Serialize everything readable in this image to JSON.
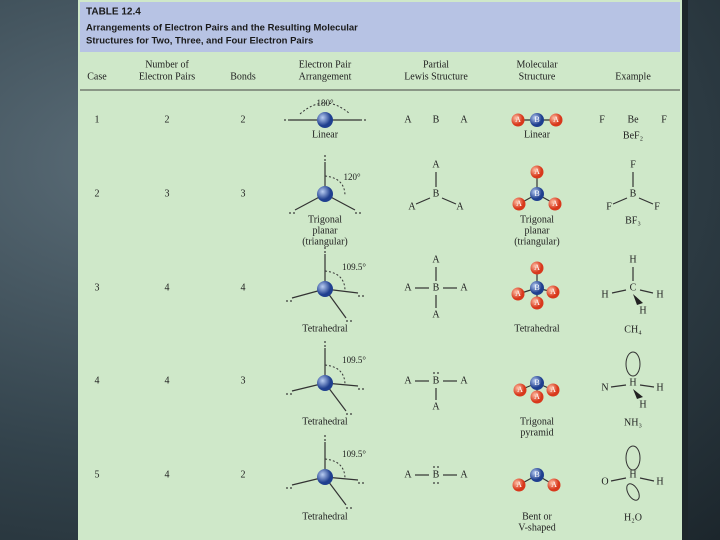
{
  "header": {
    "label": "TABLE 12.4",
    "title": [
      "Arrangements of Electron Pairs and the Resulting Molecular",
      "Structures for Two, Three, and Four Electron Pairs"
    ]
  },
  "table": {
    "columns": [
      [
        "Case"
      ],
      [
        "Number of",
        "Electron Pairs"
      ],
      [
        "Bonds"
      ],
      [
        "Electron Pair",
        "Arrangement"
      ],
      [
        "Partial",
        "Lewis Structure"
      ],
      [
        "Molecular",
        "Structure"
      ],
      [
        "Example"
      ]
    ],
    "rows": [
      {
        "case": 1,
        "pairs": 2,
        "bonds": 2,
        "angle": "180°",
        "arrangement": [
          "Linear"
        ],
        "lewis": [
          "A",
          "B",
          "A"
        ],
        "molecular": [
          "Linear"
        ],
        "example": [
          "F",
          "Be",
          "F"
        ],
        "formula": "BeF₂"
      },
      {
        "case": 2,
        "pairs": 3,
        "bonds": 3,
        "angle": "120°",
        "arrangement": [
          "Trigonal",
          "planar",
          "(triangular)"
        ],
        "lewis": [
          "A",
          "B",
          "A",
          "A"
        ],
        "molecular": [
          "Trigonal",
          "planar",
          "(triangular)"
        ],
        "example": [
          "F",
          "B",
          "F",
          "F"
        ],
        "formula": "BF₃"
      },
      {
        "case": 3,
        "pairs": 4,
        "bonds": 4,
        "angle": "109.5°",
        "arrangement": [
          "Tetrahedral"
        ],
        "lewis": [
          "A",
          "A",
          "B",
          "A",
          "A"
        ],
        "molecular": [
          "Tetrahedral"
        ],
        "example": [
          "H",
          "H",
          "C",
          "H",
          "H"
        ],
        "formula": "CH₄"
      },
      {
        "case": 4,
        "pairs": 4,
        "bonds": 3,
        "angle": "109.5°",
        "arrangement": [
          "Tetrahedral"
        ],
        "lewis": [
          "A",
          "B",
          "A",
          "A"
        ],
        "molecular": [
          "Trigonal",
          "pyramid"
        ],
        "example": [
          "H",
          "N",
          "H",
          "H"
        ],
        "formula": "NH₃"
      },
      {
        "case": 5,
        "pairs": 4,
        "bonds": 2,
        "angle": "109.5°",
        "arrangement": [
          "Tetrahedral"
        ],
        "lewis": [
          "A",
          "B",
          "A"
        ],
        "molecular": [
          "Bent or",
          "V-shaped"
        ],
        "example": [
          "H",
          "O",
          "H"
        ],
        "formula": "H₂O"
      }
    ]
  }
}
